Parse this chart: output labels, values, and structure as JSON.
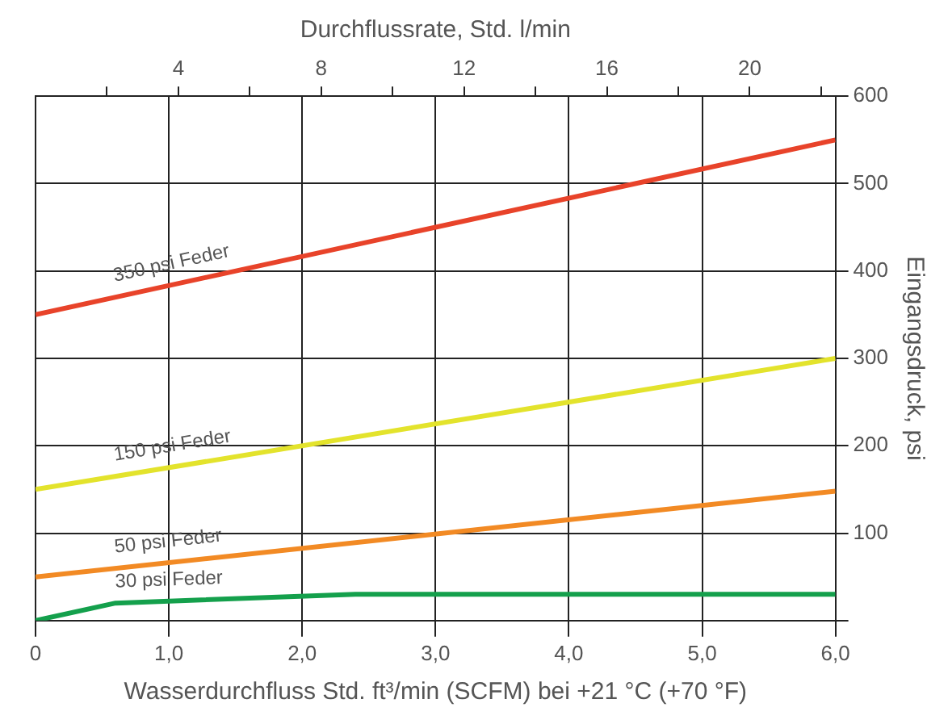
{
  "chart_data": {
    "type": "line",
    "xlabel": "Wasserdurchfluss Std. ft³/min (SCFM) bei +21 °C (+70 °F)",
    "x2label": "Durchflussrate, Std. l/min",
    "ylabel": "Eingangsdruck, psi",
    "xlim": [
      0,
      6
    ],
    "xticks": [
      0,
      {
        "value": 1,
        "label": "1,0"
      },
      {
        "value": 2,
        "label": "2,0"
      },
      {
        "value": 3,
        "label": "3,0"
      },
      {
        "value": 4,
        "label": "4,0"
      },
      {
        "value": 5,
        "label": "5,0"
      },
      {
        "value": 6,
        "label": "6,0"
      }
    ],
    "x2lim": [
      0,
      22.4
    ],
    "x2ticks": [
      {
        "value": 2,
        "label": null
      },
      4,
      {
        "value": 6,
        "label": null
      },
      8,
      {
        "value": 10,
        "label": null
      },
      12,
      {
        "value": 14,
        "label": null
      },
      16,
      {
        "value": 18,
        "label": null
      },
      20,
      {
        "value": 22,
        "label": null
      }
    ],
    "ylim": [
      0,
      600
    ],
    "yticks": [
      {
        "value": 0,
        "label": null
      },
      100,
      200,
      300,
      400,
      500,
      600
    ],
    "grid": true,
    "legend": false,
    "marker": "none",
    "line_style": "solid",
    "series": [
      {
        "name": "350 psi Feder",
        "color": "#e8432a",
        "x": [
          0,
          6
        ],
        "values": [
          350,
          550
        ]
      },
      {
        "name": "150 psi Feder",
        "color": "#e3e32c",
        "x": [
          0,
          6
        ],
        "values": [
          150,
          300
        ]
      },
      {
        "name": "50 psi Feder",
        "color": "#f28a24",
        "x": [
          0,
          6
        ],
        "values": [
          50,
          148
        ]
      },
      {
        "name": "30 psi Feder",
        "color": "#14a04c",
        "x": [
          0,
          0.6,
          2.4,
          6
        ],
        "values": [
          0,
          20,
          30,
          30
        ]
      }
    ]
  }
}
